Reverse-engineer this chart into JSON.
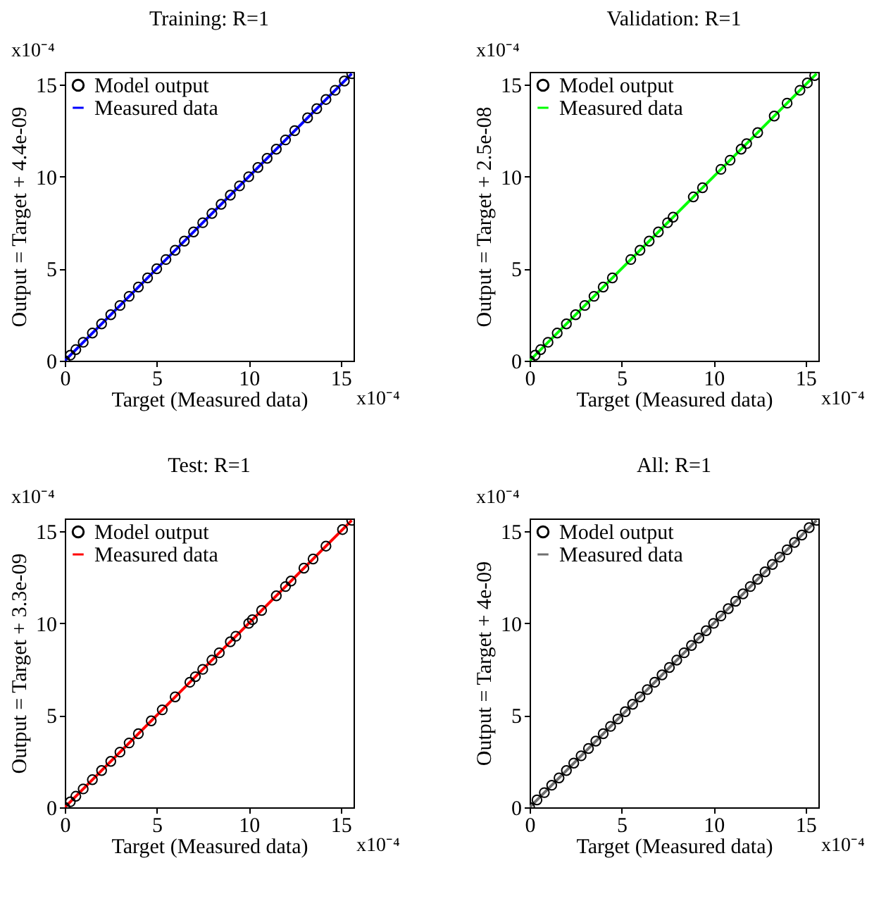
{
  "chart_data": [
    {
      "type": "scatter",
      "title": "Training: R=1",
      "xlabel": "Target (Measured data)",
      "ylabel": "Output  = Target + 4.4e-09",
      "annotations": [
        "x10⁻⁴",
        "x10⁻⁴"
      ],
      "xlim": [
        0,
        15.7
      ],
      "ylim": [
        0,
        15.7
      ],
      "xticks": [
        0,
        5,
        10,
        15
      ],
      "yticks": [
        0,
        5,
        10,
        15
      ],
      "legend": "top left",
      "grid": false,
      "series": [
        {
          "name": "Model output",
          "marker": "circle",
          "color": "#000000",
          "x": [
            0,
            0.3,
            0.6,
            1,
            1.5,
            2,
            2.5,
            3,
            3.5,
            4,
            4.5,
            5,
            5.5,
            6,
            6.5,
            7,
            7.5,
            8,
            8.5,
            9,
            9.5,
            10,
            10.5,
            11,
            11.5,
            12,
            12.5,
            13.2,
            13.7,
            14.2,
            14.7,
            15.2,
            15.6
          ],
          "values": [
            0,
            0.3,
            0.6,
            1,
            1.5,
            2,
            2.5,
            3,
            3.5,
            4,
            4.5,
            5,
            5.5,
            6,
            6.5,
            7,
            7.5,
            8,
            8.5,
            9,
            9.5,
            10,
            10.5,
            11,
            11.5,
            12,
            12.5,
            13.2,
            13.7,
            14.2,
            14.7,
            15.2,
            15.6
          ]
        },
        {
          "name": "Measured data",
          "type": "line",
          "color": "#0000ff",
          "x": [
            0,
            15.6
          ],
          "values": [
            0,
            15.6
          ]
        }
      ]
    },
    {
      "type": "scatter",
      "title": "Validation: R=1",
      "xlabel": "Target (Measured data)",
      "ylabel": "Output  = Target + 2.5e-08",
      "annotations": [
        "x10⁻⁴",
        "x10⁻⁴"
      ],
      "xlim": [
        0,
        15.7
      ],
      "ylim": [
        0,
        15.7
      ],
      "xticks": [
        0,
        5,
        10,
        15
      ],
      "yticks": [
        0,
        5,
        10,
        15
      ],
      "legend": "top left",
      "grid": false,
      "series": [
        {
          "name": "Model output",
          "marker": "circle",
          "color": "#000000",
          "x": [
            0,
            0.3,
            0.6,
            1,
            1.5,
            2,
            2.5,
            3,
            3.5,
            4,
            4.5,
            5.5,
            6,
            6.5,
            7,
            7.5,
            7.8,
            8.9,
            9.4,
            10.4,
            10.9,
            11.5,
            11.8,
            12.4,
            13.3,
            14,
            14.7,
            15.1,
            15.5
          ],
          "values": [
            0,
            0.3,
            0.6,
            1,
            1.5,
            2,
            2.5,
            3,
            3.5,
            4,
            4.5,
            5.5,
            6,
            6.5,
            7,
            7.5,
            7.8,
            8.9,
            9.4,
            10.4,
            10.9,
            11.5,
            11.8,
            12.4,
            13.3,
            14,
            14.7,
            15.1,
            15.5
          ]
        },
        {
          "name": "Measured data",
          "type": "line",
          "color": "#00ff00",
          "x": [
            0,
            15.6
          ],
          "values": [
            0,
            15.6
          ]
        }
      ]
    },
    {
      "type": "scatter",
      "title": "Test: R=1",
      "xlabel": "Target (Measured data)",
      "ylabel": "Output  = Target + 3.3e-09",
      "annotations": [
        "x10⁻⁴",
        "x10⁻⁴"
      ],
      "xlim": [
        0,
        15.7
      ],
      "ylim": [
        0,
        15.7
      ],
      "xticks": [
        0,
        5,
        10,
        15
      ],
      "yticks": [
        0,
        5,
        10,
        15
      ],
      "legend": "top left",
      "grid": false,
      "series": [
        {
          "name": "Model output",
          "marker": "circle",
          "color": "#000000",
          "x": [
            0,
            0.3,
            0.6,
            1,
            1.5,
            2,
            2.5,
            3,
            3.5,
            4,
            4.7,
            5.3,
            6,
            6.8,
            7.1,
            7.5,
            8,
            8.4,
            9,
            9.3,
            10,
            10.2,
            10.7,
            11.5,
            12,
            12.3,
            13,
            13.5,
            14.2,
            15.1,
            15.6
          ],
          "values": [
            0,
            0.3,
            0.6,
            1,
            1.5,
            2,
            2.5,
            3,
            3.5,
            4,
            4.7,
            5.3,
            6,
            6.8,
            7.1,
            7.5,
            8,
            8.4,
            9,
            9.3,
            10,
            10.2,
            10.7,
            11.5,
            12,
            12.3,
            13,
            13.5,
            14.2,
            15.1,
            15.6
          ]
        },
        {
          "name": "Measured data",
          "type": "line",
          "color": "#ff0000",
          "x": [
            0,
            15.6
          ],
          "values": [
            0,
            15.6
          ]
        }
      ]
    },
    {
      "type": "scatter",
      "title": "All: R=1",
      "xlabel": "Target (Measured data)",
      "ylabel": "Output  = Target + 4e-09",
      "annotations": [
        "x10⁻⁴",
        "x10⁻⁴"
      ],
      "xlim": [
        0,
        15.7
      ],
      "ylim": [
        0,
        15.7
      ],
      "xticks": [
        0,
        5,
        10,
        15
      ],
      "yticks": [
        0,
        5,
        10,
        15
      ],
      "legend": "top left",
      "grid": false,
      "series": [
        {
          "name": "Model output",
          "marker": "circle",
          "color": "#000000",
          "x": [
            0,
            0.4,
            0.8,
            1.2,
            1.6,
            2,
            2.4,
            2.8,
            3.2,
            3.6,
            4,
            4.4,
            4.8,
            5.2,
            5.6,
            6,
            6.4,
            6.8,
            7.2,
            7.6,
            8,
            8.4,
            8.8,
            9.2,
            9.6,
            10,
            10.4,
            10.8,
            11.2,
            11.6,
            12,
            12.4,
            12.8,
            13.2,
            13.6,
            14,
            14.4,
            14.8,
            15.2,
            15.6
          ],
          "values": [
            0,
            0.4,
            0.8,
            1.2,
            1.6,
            2,
            2.4,
            2.8,
            3.2,
            3.6,
            4,
            4.4,
            4.8,
            5.2,
            5.6,
            6,
            6.4,
            6.8,
            7.2,
            7.6,
            8,
            8.4,
            8.8,
            9.2,
            9.6,
            10,
            10.4,
            10.8,
            11.2,
            11.6,
            12,
            12.4,
            12.8,
            13.2,
            13.6,
            14,
            14.4,
            14.8,
            15.2,
            15.6
          ]
        },
        {
          "name": "Measured data",
          "type": "line",
          "color": "#707070",
          "x": [
            0,
            15.6
          ],
          "values": [
            0,
            15.6
          ]
        }
      ]
    }
  ]
}
